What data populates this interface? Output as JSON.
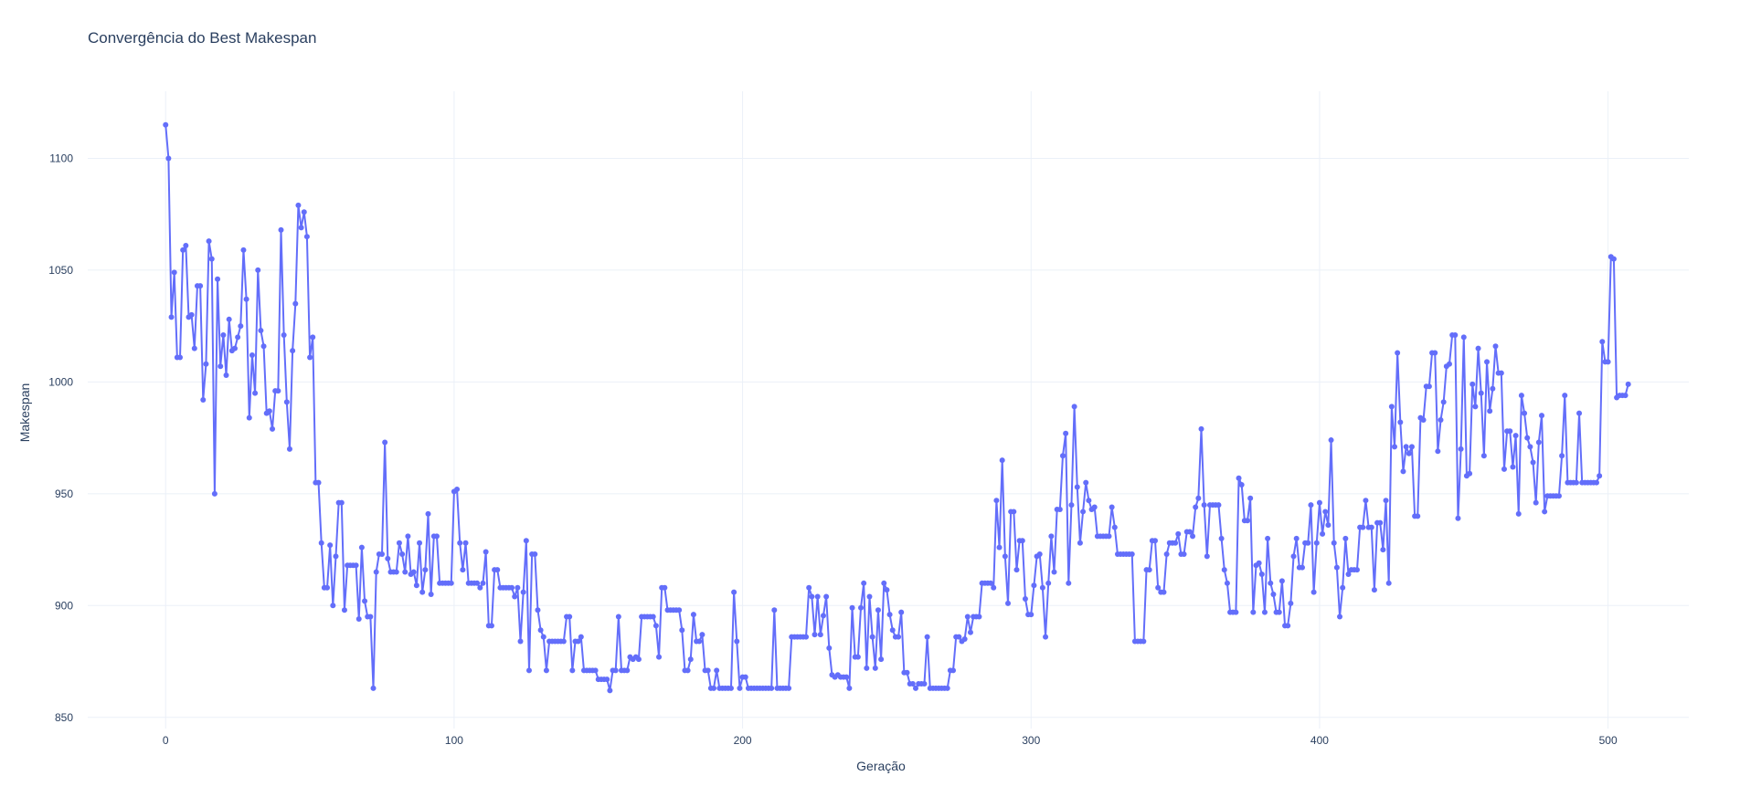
{
  "chart_data": {
    "type": "line",
    "title": "Convergência do Best Makespan",
    "xlabel": "Geração",
    "ylabel": "Makespan",
    "xlim": [
      -27,
      528
    ],
    "ylim": [
      845,
      1130
    ],
    "x_ticks": [
      0,
      100,
      200,
      300,
      400,
      500
    ],
    "x_tick_labels": [
      "0",
      "100",
      "200",
      "300",
      "400",
      "500"
    ],
    "y_ticks": [
      850,
      900,
      950,
      1000,
      1050,
      1100
    ],
    "y_tick_labels": [
      "850",
      "900",
      "950",
      "1000",
      "1050",
      "1100"
    ],
    "grid": true,
    "line_color": "#636efa",
    "anchors": [
      [
        0,
        1115
      ],
      [
        1,
        1100
      ],
      [
        2,
        1029
      ],
      [
        3,
        1049
      ],
      [
        4,
        1011
      ],
      [
        5,
        1011
      ],
      [
        6,
        1059
      ],
      [
        7,
        1061
      ],
      [
        8,
        1029
      ],
      [
        9,
        1030
      ],
      [
        10,
        1015
      ],
      [
        11,
        1043
      ],
      [
        12,
        1043
      ],
      [
        13,
        992
      ],
      [
        14,
        1008
      ],
      [
        15,
        1063
      ],
      [
        16,
        1055
      ],
      [
        17,
        950
      ],
      [
        18,
        1046
      ],
      [
        19,
        1007
      ],
      [
        20,
        1021
      ],
      [
        21,
        1003
      ],
      [
        22,
        1028
      ],
      [
        23,
        1014
      ],
      [
        24,
        1015
      ],
      [
        25,
        1020
      ],
      [
        26,
        1025
      ],
      [
        27,
        1059
      ],
      [
        28,
        1037
      ],
      [
        29,
        984
      ],
      [
        30,
        1012
      ],
      [
        31,
        995
      ],
      [
        32,
        1050
      ],
      [
        33,
        1023
      ],
      [
        34,
        1016
      ],
      [
        35,
        986
      ],
      [
        36,
        987
      ],
      [
        37,
        979
      ],
      [
        38,
        996
      ],
      [
        39,
        996
      ],
      [
        40,
        1068
      ],
      [
        41,
        1021
      ],
      [
        42,
        991
      ],
      [
        43,
        970
      ],
      [
        44,
        1014
      ],
      [
        45,
        1035
      ],
      [
        46,
        1079
      ],
      [
        47,
        1069
      ],
      [
        48,
        1076
      ],
      [
        49,
        1065
      ],
      [
        50,
        1011
      ],
      [
        51,
        1020
      ],
      [
        52,
        955
      ],
      [
        53,
        955
      ],
      [
        54,
        928
      ],
      [
        55,
        908
      ],
      [
        56,
        908
      ],
      [
        57,
        927
      ],
      [
        58,
        900
      ],
      [
        59,
        922
      ],
      [
        60,
        946
      ],
      [
        61,
        946
      ],
      [
        62,
        898
      ],
      [
        63,
        918
      ],
      [
        64,
        918
      ],
      [
        65,
        918
      ],
      [
        66,
        918
      ],
      [
        67,
        894
      ],
      [
        68,
        926
      ],
      [
        69,
        902
      ],
      [
        70,
        895
      ],
      [
        71,
        895
      ],
      [
        72,
        863
      ],
      [
        73,
        915
      ],
      [
        74,
        923
      ],
      [
        75,
        923
      ],
      [
        76,
        973
      ],
      [
        77,
        921
      ],
      [
        78,
        915
      ],
      [
        80,
        915
      ],
      [
        81,
        928
      ],
      [
        82,
        923
      ],
      [
        83,
        915
      ],
      [
        84,
        931
      ],
      [
        85,
        914
      ],
      [
        86,
        915
      ],
      [
        87,
        909
      ],
      [
        88,
        928
      ],
      [
        89,
        906
      ],
      [
        90,
        916
      ],
      [
        91,
        941
      ],
      [
        92,
        905
      ],
      [
        93,
        931
      ],
      [
        94,
        931
      ],
      [
        95,
        910
      ],
      [
        99,
        910
      ],
      [
        100,
        951
      ],
      [
        101,
        952
      ],
      [
        102,
        928
      ],
      [
        103,
        916
      ],
      [
        104,
        928
      ],
      [
        105,
        910
      ],
      [
        108,
        910
      ],
      [
        109,
        908
      ],
      [
        110,
        910
      ],
      [
        111,
        924
      ],
      [
        112,
        891
      ],
      [
        113,
        891
      ],
      [
        114,
        916
      ],
      [
        115,
        916
      ],
      [
        116,
        908
      ],
      [
        120,
        908
      ],
      [
        121,
        904
      ],
      [
        122,
        908
      ],
      [
        123,
        884
      ],
      [
        124,
        906
      ],
      [
        125,
        929
      ],
      [
        126,
        871
      ],
      [
        127,
        923
      ],
      [
        128,
        923
      ],
      [
        129,
        898
      ],
      [
        130,
        889
      ],
      [
        131,
        886
      ],
      [
        132,
        871
      ],
      [
        133,
        884
      ],
      [
        138,
        884
      ],
      [
        139,
        895
      ],
      [
        140,
        895
      ],
      [
        141,
        871
      ],
      [
        142,
        884
      ],
      [
        143,
        884
      ],
      [
        144,
        886
      ],
      [
        145,
        871
      ],
      [
        149,
        871
      ],
      [
        150,
        867
      ],
      [
        153,
        867
      ],
      [
        154,
        862
      ],
      [
        155,
        871
      ],
      [
        156,
        871
      ],
      [
        157,
        895
      ],
      [
        158,
        871
      ],
      [
        160,
        871
      ],
      [
        161,
        877
      ],
      [
        162,
        876
      ],
      [
        163,
        877
      ],
      [
        164,
        876
      ],
      [
        165,
        895
      ],
      [
        169,
        895
      ],
      [
        170,
        891
      ],
      [
        171,
        877
      ],
      [
        172,
        908
      ],
      [
        173,
        908
      ],
      [
        174,
        898
      ],
      [
        178,
        898
      ],
      [
        179,
        889
      ],
      [
        180,
        871
      ],
      [
        181,
        871
      ],
      [
        182,
        876
      ],
      [
        183,
        896
      ],
      [
        184,
        884
      ],
      [
        185,
        884
      ],
      [
        186,
        887
      ],
      [
        187,
        871
      ],
      [
        188,
        871
      ],
      [
        189,
        863
      ],
      [
        190,
        863
      ],
      [
        191,
        871
      ],
      [
        192,
        863
      ],
      [
        196,
        863
      ],
      [
        197,
        906
      ],
      [
        198,
        884
      ],
      [
        199,
        863
      ],
      [
        200,
        868
      ],
      [
        201,
        868
      ],
      [
        202,
        863
      ],
      [
        210,
        863
      ],
      [
        211,
        898
      ],
      [
        212,
        863
      ],
      [
        216,
        863
      ],
      [
        217,
        886
      ],
      [
        222,
        886
      ],
      [
        223,
        908
      ],
      [
        224,
        904
      ],
      [
        225,
        887
      ],
      [
        226,
        904
      ],
      [
        227,
        887
      ],
      [
        229,
        904
      ],
      [
        230,
        881
      ],
      [
        231,
        869
      ],
      [
        232,
        868
      ],
      [
        233,
        869
      ],
      [
        234,
        868
      ],
      [
        236,
        868
      ],
      [
        237,
        863
      ],
      [
        238,
        899
      ],
      [
        239,
        877
      ],
      [
        240,
        877
      ],
      [
        241,
        899
      ],
      [
        242,
        910
      ],
      [
        243,
        872
      ],
      [
        244,
        904
      ],
      [
        245,
        886
      ],
      [
        246,
        872
      ],
      [
        247,
        898
      ],
      [
        248,
        876
      ],
      [
        249,
        910
      ],
      [
        250,
        907
      ],
      [
        251,
        896
      ],
      [
        252,
        889
      ],
      [
        253,
        886
      ],
      [
        254,
        886
      ],
      [
        255,
        897
      ],
      [
        256,
        870
      ],
      [
        257,
        870
      ],
      [
        258,
        865
      ],
      [
        259,
        865
      ],
      [
        260,
        863
      ],
      [
        261,
        865
      ],
      [
        263,
        865
      ],
      [
        264,
        886
      ],
      [
        265,
        863
      ],
      [
        271,
        863
      ],
      [
        272,
        871
      ],
      [
        273,
        871
      ],
      [
        274,
        886
      ],
      [
        275,
        886
      ],
      [
        276,
        884
      ],
      [
        277,
        885
      ],
      [
        278,
        895
      ],
      [
        279,
        888
      ],
      [
        280,
        895
      ],
      [
        282,
        895
      ],
      [
        283,
        910
      ],
      [
        286,
        910
      ],
      [
        287,
        908
      ],
      [
        288,
        947
      ],
      [
        289,
        926
      ],
      [
        290,
        965
      ],
      [
        291,
        922
      ],
      [
        292,
        901
      ],
      [
        293,
        942
      ],
      [
        294,
        942
      ],
      [
        295,
        916
      ],
      [
        296,
        929
      ],
      [
        297,
        929
      ],
      [
        298,
        903
      ],
      [
        299,
        896
      ],
      [
        300,
        896
      ],
      [
        301,
        909
      ],
      [
        302,
        922
      ],
      [
        303,
        923
      ],
      [
        304,
        908
      ],
      [
        305,
        886
      ],
      [
        306,
        910
      ],
      [
        307,
        931
      ],
      [
        308,
        915
      ],
      [
        309,
        943
      ],
      [
        310,
        943
      ],
      [
        311,
        967
      ],
      [
        312,
        977
      ],
      [
        313,
        910
      ],
      [
        314,
        945
      ],
      [
        315,
        989
      ],
      [
        316,
        953
      ],
      [
        317,
        928
      ],
      [
        318,
        942
      ],
      [
        319,
        955
      ],
      [
        320,
        947
      ],
      [
        321,
        943
      ],
      [
        322,
        944
      ],
      [
        323,
        931
      ],
      [
        327,
        931
      ],
      [
        328,
        944
      ],
      [
        329,
        935
      ],
      [
        330,
        923
      ],
      [
        335,
        923
      ],
      [
        336,
        884
      ],
      [
        339,
        884
      ],
      [
        340,
        916
      ],
      [
        341,
        916
      ],
      [
        342,
        929
      ],
      [
        343,
        929
      ],
      [
        344,
        908
      ],
      [
        345,
        906
      ],
      [
        346,
        906
      ],
      [
        347,
        923
      ],
      [
        348,
        928
      ],
      [
        350,
        928
      ],
      [
        351,
        932
      ],
      [
        352,
        923
      ],
      [
        353,
        923
      ],
      [
        354,
        933
      ],
      [
        355,
        933
      ],
      [
        356,
        931
      ],
      [
        357,
        944
      ],
      [
        358,
        948
      ],
      [
        359,
        979
      ],
      [
        360,
        945
      ],
      [
        361,
        922
      ],
      [
        362,
        945
      ],
      [
        365,
        945
      ],
      [
        366,
        930
      ],
      [
        367,
        916
      ],
      [
        368,
        910
      ],
      [
        369,
        897
      ],
      [
        371,
        897
      ],
      [
        372,
        957
      ],
      [
        373,
        954
      ],
      [
        374,
        938
      ],
      [
        375,
        938
      ],
      [
        376,
        948
      ],
      [
        377,
        897
      ],
      [
        378,
        918
      ],
      [
        379,
        919
      ],
      [
        380,
        914
      ],
      [
        381,
        897
      ],
      [
        382,
        930
      ],
      [
        383,
        910
      ],
      [
        384,
        905
      ],
      [
        385,
        897
      ],
      [
        386,
        897
      ],
      [
        387,
        911
      ],
      [
        388,
        891
      ],
      [
        389,
        891
      ],
      [
        390,
        901
      ],
      [
        391,
        922
      ],
      [
        392,
        930
      ],
      [
        393,
        917
      ],
      [
        394,
        917
      ],
      [
        395,
        928
      ],
      [
        396,
        928
      ],
      [
        397,
        945
      ],
      [
        398,
        906
      ],
      [
        399,
        928
      ],
      [
        400,
        946
      ],
      [
        401,
        932
      ],
      [
        402,
        942
      ],
      [
        403,
        936
      ],
      [
        404,
        974
      ],
      [
        405,
        928
      ],
      [
        406,
        917
      ],
      [
        407,
        895
      ],
      [
        408,
        908
      ],
      [
        409,
        930
      ],
      [
        410,
        914
      ],
      [
        411,
        916
      ],
      [
        413,
        916
      ],
      [
        414,
        935
      ],
      [
        415,
        935
      ],
      [
        416,
        947
      ],
      [
        417,
        935
      ],
      [
        418,
        935
      ],
      [
        419,
        907
      ],
      [
        420,
        937
      ],
      [
        421,
        937
      ],
      [
        422,
        925
      ],
      [
        423,
        947
      ],
      [
        424,
        910
      ],
      [
        425,
        989
      ],
      [
        426,
        971
      ],
      [
        427,
        1013
      ],
      [
        428,
        982
      ],
      [
        429,
        960
      ],
      [
        430,
        971
      ],
      [
        431,
        968
      ],
      [
        432,
        971
      ],
      [
        433,
        940
      ],
      [
        434,
        940
      ],
      [
        435,
        984
      ],
      [
        436,
        983
      ],
      [
        437,
        998
      ],
      [
        438,
        998
      ],
      [
        439,
        1013
      ],
      [
        440,
        1013
      ],
      [
        441,
        969
      ],
      [
        442,
        983
      ],
      [
        443,
        991
      ],
      [
        444,
        1007
      ],
      [
        445,
        1008
      ],
      [
        446,
        1021
      ],
      [
        447,
        1021
      ],
      [
        448,
        939
      ],
      [
        449,
        970
      ],
      [
        450,
        1020
      ],
      [
        451,
        958
      ],
      [
        452,
        959
      ],
      [
        453,
        999
      ],
      [
        454,
        989
      ],
      [
        455,
        1015
      ],
      [
        456,
        995
      ],
      [
        457,
        967
      ],
      [
        458,
        1009
      ],
      [
        459,
        987
      ],
      [
        460,
        997
      ],
      [
        461,
        1016
      ],
      [
        462,
        1004
      ],
      [
        463,
        1004
      ],
      [
        464,
        961
      ],
      [
        465,
        978
      ],
      [
        466,
        978
      ],
      [
        467,
        962
      ],
      [
        468,
        976
      ],
      [
        469,
        941
      ],
      [
        470,
        994
      ],
      [
        471,
        986
      ],
      [
        472,
        975
      ],
      [
        473,
        971
      ],
      [
        474,
        964
      ],
      [
        475,
        946
      ],
      [
        476,
        973
      ],
      [
        477,
        985
      ],
      [
        478,
        942
      ],
      [
        479,
        949
      ],
      [
        483,
        949
      ],
      [
        484,
        967
      ],
      [
        485,
        994
      ],
      [
        486,
        955
      ],
      [
        489,
        955
      ],
      [
        490,
        986
      ],
      [
        491,
        955
      ],
      [
        496,
        955
      ],
      [
        497,
        958
      ],
      [
        498,
        1018
      ],
      [
        499,
        1009
      ],
      [
        500,
        1009
      ],
      [
        501,
        1056
      ],
      [
        502,
        1055
      ],
      [
        503,
        993
      ],
      [
        504,
        994
      ],
      [
        506,
        994
      ],
      [
        507,
        999
      ]
    ]
  }
}
